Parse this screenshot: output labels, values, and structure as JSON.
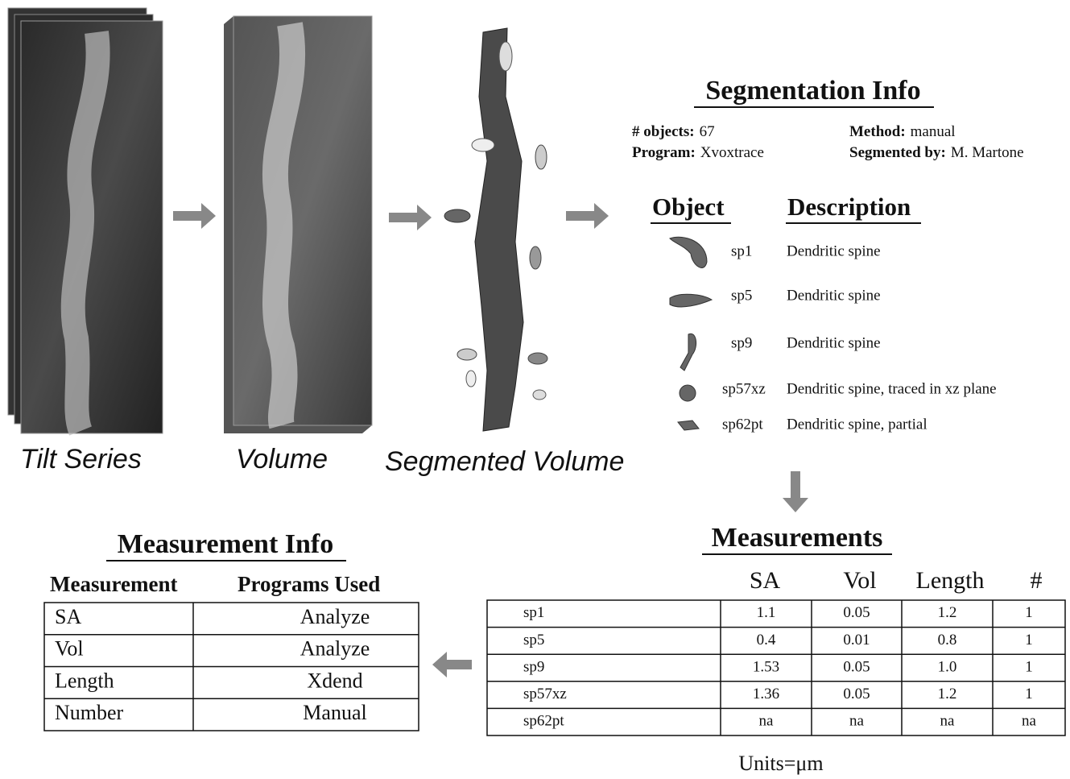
{
  "stages": [
    {
      "label": "Tilt Series"
    },
    {
      "label": "Volume"
    },
    {
      "label": "Segmented Volume"
    }
  ],
  "segmentation_info": {
    "title": "Segmentation Info",
    "fields": [
      {
        "label": "# objects:",
        "value": "67"
      },
      {
        "label": "Program:",
        "value": "Xvoxtrace"
      },
      {
        "label": "Method:",
        "value": "manual"
      },
      {
        "label": "Segmented by:",
        "value": "M. Martone"
      }
    ],
    "headers": [
      "Object",
      "Description"
    ],
    "objects": [
      {
        "name": "sp1",
        "description": "Dendritic spine"
      },
      {
        "name": "sp5",
        "description": "Dendritic spine"
      },
      {
        "name": "sp9",
        "description": "Dendritic spine"
      },
      {
        "name": "sp57xz",
        "description": "Dendritic spine, traced in  xz plane"
      },
      {
        "name": "sp62pt",
        "description": "Dendritic spine, partial"
      }
    ]
  },
  "measurements": {
    "title": "Measurements",
    "headers": [
      "SA",
      "Vol",
      "Length",
      "#"
    ],
    "rows": [
      [
        "sp1",
        "1.1",
        "0.05",
        "1.2",
        "1"
      ],
      [
        "sp5",
        "0.4",
        "0.01",
        "0.8",
        "1"
      ],
      [
        "sp9",
        "1.53",
        "0.05",
        "1.0",
        "1"
      ],
      [
        "sp57xz",
        "1.36",
        "0.05",
        "1.2",
        "1"
      ],
      [
        "sp62pt",
        "na",
        "na",
        "na",
        "na"
      ]
    ],
    "units": "Units=μm"
  },
  "measurement_info": {
    "title": "Measurement Info",
    "headers": [
      "Measurement",
      "Programs Used"
    ],
    "rows": [
      [
        "SA",
        "Analyze"
      ],
      [
        "Vol",
        "Analyze"
      ],
      [
        "Length",
        "Xdend"
      ],
      [
        "Number",
        "Manual"
      ]
    ]
  }
}
